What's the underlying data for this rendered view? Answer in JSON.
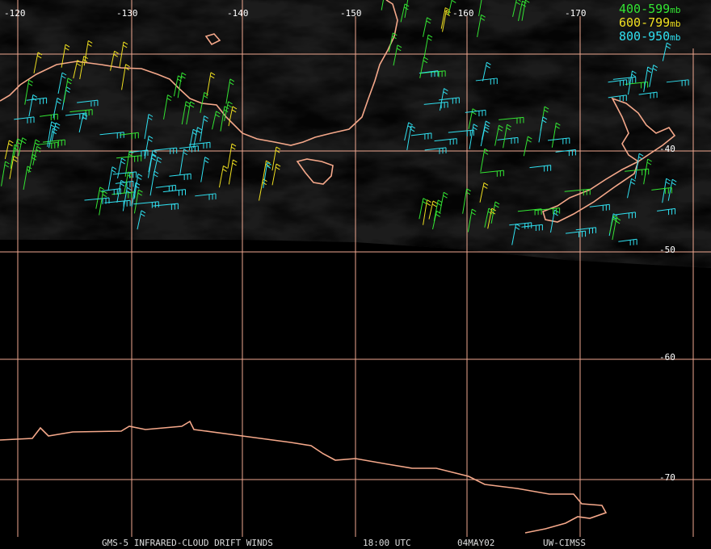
{
  "map": {
    "longitude_labels": [
      "-120",
      "-130",
      "-140",
      "-150",
      "-160",
      "-170"
    ],
    "latitude_labels": [
      "-40",
      "-50",
      "-60",
      "-70"
    ],
    "legend": [
      {
        "range": "400-599",
        "unit": "mb",
        "color": "#33e533"
      },
      {
        "range": "600-799",
        "unit": "mb",
        "color": "#f0e020"
      },
      {
        "range": "800-950",
        "unit": "mb",
        "color": "#30e0f0"
      }
    ],
    "footer": [
      "GMS-5 INFRARED-CLOUD DRIFT WINDS",
      "18:00 UTC",
      "04MAY02",
      "UW-CIMSS"
    ]
  }
}
